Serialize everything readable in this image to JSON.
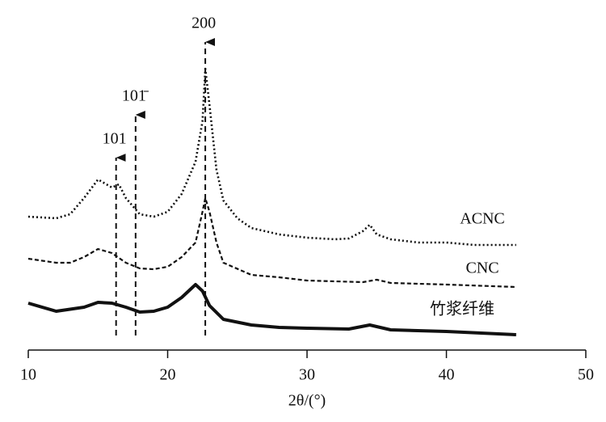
{
  "chart_data": {
    "type": "line",
    "x_label": "2θ/(°)",
    "xlim": [
      10,
      50
    ],
    "xticks": [
      10,
      20,
      30,
      40,
      50
    ],
    "series": [
      {
        "name": "ACNC",
        "color": "#111111",
        "x": [
          10,
          12,
          13,
          14,
          15,
          16,
          16.5,
          17,
          18,
          19,
          20,
          21,
          22,
          22.5,
          22.7,
          23,
          23.5,
          24,
          25,
          26,
          28,
          30,
          32,
          33,
          34,
          34.5,
          35,
          36,
          38,
          40,
          42,
          45
        ],
        "values": [
          165,
          163,
          168,
          188,
          211,
          201,
          205,
          188,
          168,
          165,
          171,
          193,
          233,
          283,
          348,
          303,
          223,
          185,
          163,
          151,
          143,
          139,
          137,
          138,
          147,
          155,
          143,
          137,
          133,
          133,
          130,
          130
        ]
      },
      {
        "name": "CNC",
        "color": "#111111",
        "x": [
          10,
          12,
          13,
          14,
          15,
          16,
          17,
          18,
          19,
          20,
          21,
          22,
          22.5,
          22.7,
          23,
          23.5,
          24,
          26,
          28,
          30,
          34,
          35,
          36,
          40,
          45
        ],
        "values": [
          113,
          108,
          108,
          115,
          125,
          120,
          108,
          101,
          100,
          103,
          115,
          133,
          171,
          188,
          171,
          133,
          108,
          93,
          90,
          86,
          84,
          87,
          83,
          81,
          78
        ]
      },
      {
        "name": "竹浆纤维",
        "color": "#111111",
        "x": [
          10,
          12,
          14,
          15,
          16,
          17,
          18,
          19,
          20,
          21,
          22,
          22.5,
          23,
          24,
          26,
          28,
          30,
          33,
          34.5,
          36,
          40,
          45
        ],
        "values": [
          58,
          48,
          53,
          59,
          58,
          53,
          47,
          48,
          53,
          65,
          81,
          73,
          55,
          38,
          31,
          28,
          27,
          26,
          31,
          25,
          23,
          19
        ]
      }
    ],
    "annotations": [
      {
        "label": "101",
        "x": 16.3
      },
      {
        "label": "101̄",
        "x": 17.7
      },
      {
        "label": "200",
        "x": 22.7
      }
    ]
  }
}
